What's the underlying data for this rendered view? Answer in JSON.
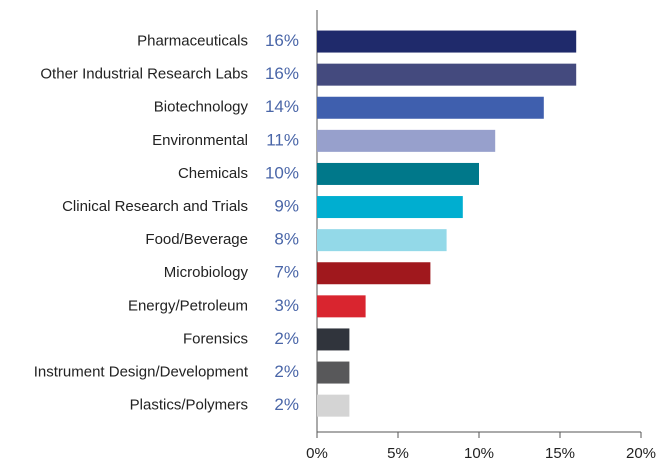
{
  "chart_data": {
    "type": "bar",
    "orientation": "horizontal",
    "categories": [
      "Pharmaceuticals",
      "Other Industrial Research Labs",
      "Biotechnology",
      "Environmental",
      "Chemicals",
      "Clinical Research and Trials",
      "Food/Beverage",
      "Microbiology",
      "Energy/Petroleum",
      "Forensics",
      "Instrument Design/Development",
      "Plastics/Polymers"
    ],
    "values": [
      16,
      16,
      14,
      11,
      10,
      9,
      8,
      7,
      3,
      2,
      2,
      2
    ],
    "value_labels": [
      "16%",
      "16%",
      "14%",
      "11%",
      "10%",
      "9%",
      "8%",
      "7%",
      "3%",
      "2%",
      "2%",
      "2%"
    ],
    "colors": [
      "#1f2a6b",
      "#444a7e",
      "#3f5fae",
      "#97a0cc",
      "#00788a",
      "#00aed0",
      "#93d9e8",
      "#a0181d",
      "#d9252f",
      "#30343c",
      "#58585a",
      "#d4d4d4"
    ],
    "xlim": [
      0,
      20
    ],
    "xticks": [
      {
        "value": 0,
        "label": "0%"
      },
      {
        "value": 5,
        "label": "5%"
      },
      {
        "value": 10,
        "label": "10%"
      },
      {
        "value": 15,
        "label": "15%"
      },
      {
        "value": 20,
        "label": "20%"
      }
    ]
  }
}
